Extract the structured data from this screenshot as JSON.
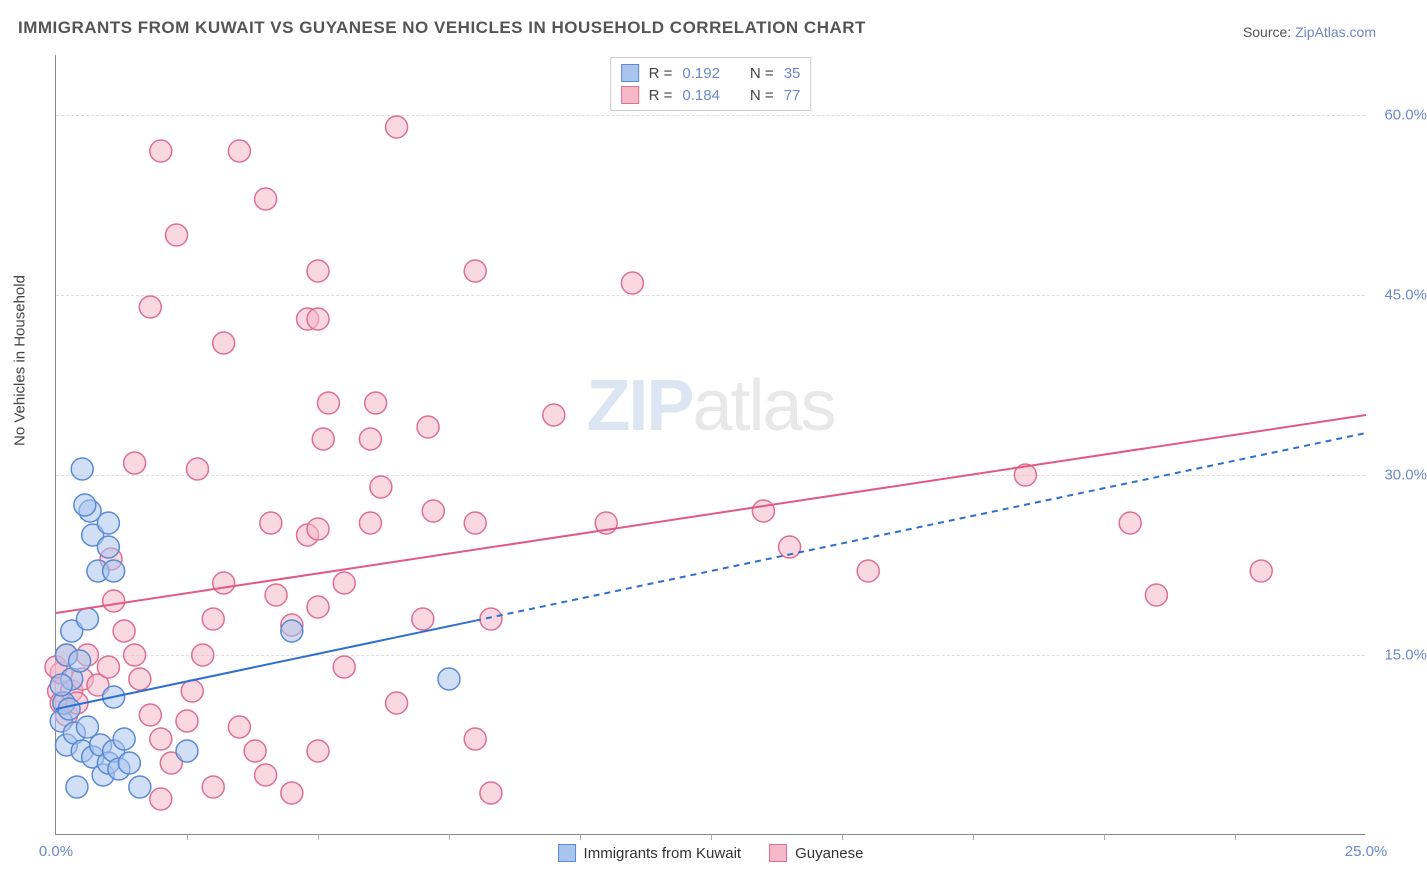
{
  "title": "IMMIGRANTS FROM KUWAIT VS GUYANESE NO VEHICLES IN HOUSEHOLD CORRELATION CHART",
  "source_label": "Source:",
  "source_value": "ZipAtlas.com",
  "ylabel": "No Vehicles in Household",
  "watermark": {
    "part1": "ZIP",
    "part2": "atlas"
  },
  "chart": {
    "type": "scatter",
    "background_color": "#ffffff",
    "grid_color": "#dddddd",
    "axis_color": "#888888",
    "xlim": [
      0,
      25
    ],
    "ylim": [
      0,
      65
    ],
    "xtick_positions": [
      0,
      12.5,
      25
    ],
    "xtick_labels": [
      "0.0%",
      "",
      "25.0%"
    ],
    "xtick_minor": [
      2.5,
      5,
      7.5,
      10,
      12.5,
      15,
      17.5,
      20,
      22.5
    ],
    "ytick_positions": [
      15,
      30,
      45,
      60
    ],
    "ytick_labels": [
      "15.0%",
      "30.0%",
      "45.0%",
      "60.0%"
    ],
    "label_color": "#6a8ac9",
    "label_fontsize": 15,
    "title_fontsize": 17,
    "title_color": "#555555",
    "marker_radius": 11,
    "marker_stroke_width": 1.5,
    "series": [
      {
        "name": "Immigrants from Kuwait",
        "color_fill": "#a9c5ed",
        "color_stroke": "#5a8ad4",
        "fill_opacity": 0.55,
        "R": "0.192",
        "N": "35",
        "trend": {
          "x1": 0,
          "y1": 10.5,
          "x2": 25,
          "y2": 33.5,
          "solid_until_x": 8.0,
          "stroke": "#2f6fd0",
          "width": 2
        },
        "points": [
          [
            0.1,
            9.5
          ],
          [
            0.15,
            11
          ],
          [
            0.2,
            7.5
          ],
          [
            0.25,
            10.5
          ],
          [
            0.3,
            13
          ],
          [
            0.2,
            15
          ],
          [
            0.45,
            14.5
          ],
          [
            0.1,
            12.5
          ],
          [
            0.35,
            8.5
          ],
          [
            0.5,
            7
          ],
          [
            0.6,
            9
          ],
          [
            0.7,
            6.5
          ],
          [
            0.85,
            7.5
          ],
          [
            0.9,
            5
          ],
          [
            1.0,
            6
          ],
          [
            1.1,
            7
          ],
          [
            1.2,
            5.5
          ],
          [
            1.3,
            8
          ],
          [
            1.4,
            6
          ],
          [
            1.1,
            11.5
          ],
          [
            0.3,
            17
          ],
          [
            0.6,
            18
          ],
          [
            0.8,
            22
          ],
          [
            0.7,
            25
          ],
          [
            0.65,
            27
          ],
          [
            0.55,
            27.5
          ],
          [
            1.0,
            26
          ],
          [
            1.0,
            24
          ],
          [
            1.1,
            22
          ],
          [
            0.5,
            30.5
          ],
          [
            4.5,
            17
          ],
          [
            7.5,
            13
          ],
          [
            2.5,
            7
          ],
          [
            1.6,
            4
          ],
          [
            0.4,
            4
          ]
        ]
      },
      {
        "name": "Guyanese",
        "color_fill": "#f5b8c8",
        "color_stroke": "#de6f92",
        "fill_opacity": 0.55,
        "R": "0.184",
        "N": "77",
        "trend": {
          "x1": 0,
          "y1": 18.5,
          "x2": 25,
          "y2": 35,
          "solid_until_x": 25,
          "stroke": "#e05a85",
          "width": 2
        },
        "points": [
          [
            0.05,
            12
          ],
          [
            0.1,
            13.5
          ],
          [
            0.1,
            11
          ],
          [
            0.2,
            10
          ],
          [
            0.3,
            12
          ],
          [
            0.4,
            11
          ],
          [
            0.5,
            13
          ],
          [
            0.0,
            14
          ],
          [
            0.2,
            15
          ],
          [
            0.6,
            15
          ],
          [
            0.8,
            12.5
          ],
          [
            1.0,
            14
          ],
          [
            1.05,
            23
          ],
          [
            1.1,
            19.5
          ],
          [
            1.3,
            17
          ],
          [
            1.5,
            15
          ],
          [
            1.6,
            13
          ],
          [
            1.8,
            10
          ],
          [
            2.0,
            8
          ],
          [
            2.2,
            6
          ],
          [
            2.5,
            9.5
          ],
          [
            2.6,
            12
          ],
          [
            2.8,
            15
          ],
          [
            3.0,
            18
          ],
          [
            3.2,
            21
          ],
          [
            3.5,
            9
          ],
          [
            3.8,
            7
          ],
          [
            4.0,
            5
          ],
          [
            2.7,
            30.5
          ],
          [
            4.2,
            20
          ],
          [
            4.1,
            26
          ],
          [
            4.8,
            25
          ],
          [
            4.5,
            17.5
          ],
          [
            5.0,
            19
          ],
          [
            5.5,
            21
          ],
          [
            5.0,
            25.5
          ],
          [
            5.1,
            33
          ],
          [
            5.2,
            36
          ],
          [
            6.0,
            33
          ],
          [
            6.0,
            26
          ],
          [
            6.2,
            29
          ],
          [
            6.1,
            36
          ],
          [
            7.1,
            34
          ],
          [
            7.2,
            27
          ],
          [
            8.0,
            26
          ],
          [
            8.0,
            47
          ],
          [
            8.3,
            3.5
          ],
          [
            6.5,
            59
          ],
          [
            7.0,
            18
          ],
          [
            1.5,
            31
          ],
          [
            1.8,
            44
          ],
          [
            2.0,
            57
          ],
          [
            2.3,
            50
          ],
          [
            3.2,
            41
          ],
          [
            3.5,
            57
          ],
          [
            4.0,
            53
          ],
          [
            4.8,
            43
          ],
          [
            5.0,
            47
          ],
          [
            5.0,
            43
          ],
          [
            2.0,
            3
          ],
          [
            3.0,
            4
          ],
          [
            4.5,
            3.5
          ],
          [
            5.0,
            7
          ],
          [
            8.0,
            8
          ],
          [
            8.3,
            18
          ],
          [
            9.5,
            35
          ],
          [
            10.5,
            26
          ],
          [
            11.0,
            46
          ],
          [
            13.5,
            27
          ],
          [
            14.0,
            24
          ],
          [
            15.5,
            22
          ],
          [
            18.5,
            30
          ],
          [
            20.5,
            26
          ],
          [
            21.0,
            20
          ],
          [
            23.0,
            22
          ],
          [
            5.5,
            14
          ],
          [
            6.5,
            11
          ]
        ]
      }
    ],
    "legend_top": [
      {
        "swatch_fill": "#a9c5ed",
        "swatch_stroke": "#5a8ad4",
        "r_label": "R =",
        "r_val": "0.192",
        "n_label": "N =",
        "n_val": "35"
      },
      {
        "swatch_fill": "#f5b8c8",
        "swatch_stroke": "#de6f92",
        "r_label": "R =",
        "r_val": "0.184",
        "n_label": "N =",
        "n_val": "77"
      }
    ],
    "legend_bottom": [
      {
        "swatch_fill": "#a9c5ed",
        "swatch_stroke": "#5a8ad4",
        "label": "Immigrants from Kuwait"
      },
      {
        "swatch_fill": "#f5b8c8",
        "swatch_stroke": "#de6f92",
        "label": "Guyanese"
      }
    ]
  }
}
